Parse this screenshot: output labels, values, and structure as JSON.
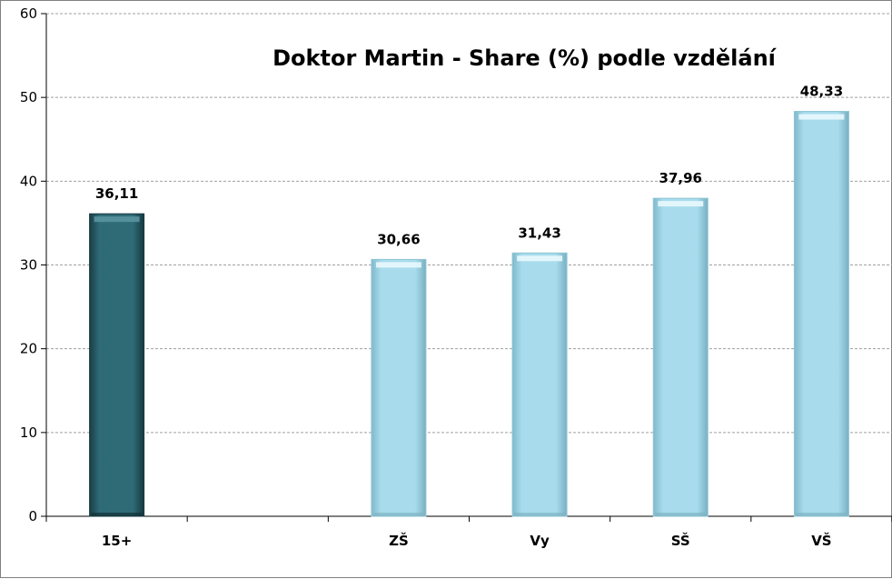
{
  "chart_data": {
    "type": "bar",
    "title": "Doktor Martin - Share (%) podle vzdělání",
    "xlabel": "",
    "ylabel": "",
    "ylim": [
      0,
      60
    ],
    "yticks": [
      "0",
      "10",
      "20",
      "30",
      "40",
      "50",
      "60"
    ],
    "grid": true,
    "categories": [
      "15+",
      "",
      "ZŠ",
      "Vy",
      "SŠ",
      "VŠ"
    ],
    "values": [
      36.11,
      null,
      30.66,
      31.43,
      37.96,
      48.33
    ],
    "value_labels": [
      "36,11",
      "",
      "30,66",
      "31,43",
      "37,96",
      "48,33"
    ],
    "colors": {
      "highlight": "#2b6470",
      "regular": "#a6dcec",
      "gridline": "#a0a0a0"
    },
    "bar_styles": [
      "highlight",
      "",
      "regular",
      "regular",
      "regular",
      "regular"
    ]
  }
}
